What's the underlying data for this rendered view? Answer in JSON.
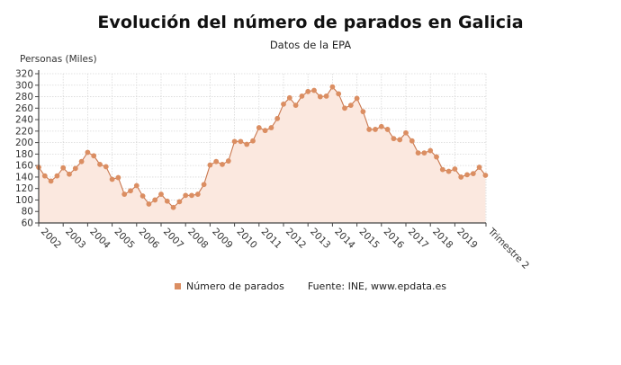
{
  "header": {
    "title": "Evolución del número de parados en Galicia",
    "subtitle": "Datos de la EPA"
  },
  "axis": {
    "ylabel": "Personas (Miles)"
  },
  "legend": {
    "series_label": "Número de parados",
    "source": "Fuente: INE, www.epdata.es"
  },
  "colors": {
    "line": "#C9774E",
    "marker": "#DB8E62",
    "fill": "#FBE8DF",
    "grid": "#d8d8d8",
    "axis": "#444444"
  },
  "chart_data": {
    "type": "area",
    "title": "Evolución del número de parados en Galicia",
    "subtitle": "Datos de la EPA",
    "xlabel": "",
    "ylabel": "Personas (Miles)",
    "ylim": [
      60,
      320
    ],
    "yticks": [
      60,
      80,
      100,
      120,
      140,
      160,
      180,
      200,
      220,
      240,
      260,
      280,
      300,
      320
    ],
    "xtick_labels": [
      "2002",
      "2003",
      "2004",
      "2005",
      "2006",
      "2007",
      "2008",
      "2009",
      "2010",
      "2011",
      "2012",
      "2013",
      "2014",
      "2015",
      "2016",
      "2017",
      "2018",
      "2019",
      "Trimestre 2"
    ],
    "grid": true,
    "legend_position": "bottom",
    "frequency": "quarterly",
    "x_start": "2002 T1",
    "x_end": "2020 T2",
    "series": [
      {
        "name": "Número de parados",
        "values": [
          157,
          142,
          133,
          142,
          156,
          145,
          155,
          167,
          183,
          177,
          162,
          158,
          136,
          139,
          110,
          116,
          125,
          107,
          93,
          100,
          110,
          98,
          87,
          97,
          108,
          108,
          110,
          127,
          161,
          167,
          162,
          168,
          202,
          202,
          197,
          203,
          226,
          221,
          226,
          242,
          267,
          278,
          265,
          281,
          289,
          291,
          280,
          281,
          297,
          285,
          260,
          265,
          277,
          254,
          223,
          223,
          228,
          223,
          207,
          205,
          217,
          203,
          182,
          182,
          186,
          175,
          153,
          150,
          154,
          140,
          144,
          146,
          157,
          143
        ]
      }
    ],
    "annotations": [
      "Fuente: INE, www.epdata.es"
    ]
  }
}
